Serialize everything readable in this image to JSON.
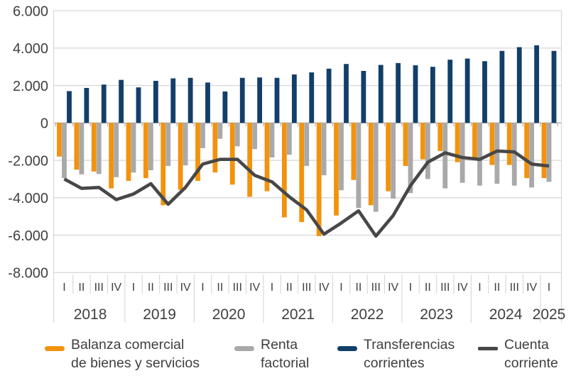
{
  "chart_data": {
    "type": "bar",
    "subtype": "grouped-bars-with-line",
    "title": "",
    "xlabel": "",
    "ylabel": "",
    "grid": true,
    "legend_position": "bottom",
    "colors": {
      "grid": "#d9d9d9",
      "axis_zero_line": "#b3b3b3",
      "tick": "#b3b3b3",
      "text": "#404040"
    },
    "y_axis": {
      "min": -8000,
      "max": 6000,
      "step": 2000,
      "ticks": [
        {
          "value": 6000,
          "label": "6.000"
        },
        {
          "value": 4000,
          "label": "4.000"
        },
        {
          "value": 2000,
          "label": "2.000"
        },
        {
          "value": 0,
          "label": "0"
        },
        {
          "value": -2000,
          "label": "-2.000"
        },
        {
          "value": -4000,
          "label": "-4.000"
        },
        {
          "value": -6000,
          "label": "-6.000"
        },
        {
          "value": -8000,
          "label": "-8.000"
        }
      ]
    },
    "quarters": [
      "I",
      "II",
      "III",
      "IV",
      "I",
      "II",
      "III",
      "IV",
      "I",
      "II",
      "III",
      "IV",
      "I",
      "II",
      "III",
      "IV",
      "I",
      "II",
      "III",
      "IV",
      "I",
      "II",
      "III",
      "IV",
      "I",
      "II",
      "III",
      "IV",
      "I"
    ],
    "years": [
      {
        "label": "2018",
        "quarters": 4
      },
      {
        "label": "2019",
        "quarters": 4
      },
      {
        "label": "2020",
        "quarters": 4
      },
      {
        "label": "2021",
        "quarters": 4
      },
      {
        "label": "2022",
        "quarters": 4
      },
      {
        "label": "2023",
        "quarters": 4
      },
      {
        "label": "2024",
        "quarters": 4
      },
      {
        "label": "2025",
        "quarters": 1
      }
    ],
    "series": [
      {
        "id": "balanza-comercial",
        "name": "Balanza comercial de bienes y servicios",
        "type": "bar",
        "color": "#f2930d",
        "values": [
          -1800,
          -2500,
          -2600,
          -3500,
          -3100,
          -2950,
          -4400,
          -3580,
          -3100,
          -2650,
          -3300,
          -3950,
          -3650,
          -5050,
          -5300,
          -6050,
          -4950,
          -3050,
          -4400,
          -3650,
          -2300,
          -1950,
          -1500,
          -2100,
          -1950,
          -2250,
          -2250,
          -2950,
          -2950
        ]
      },
      {
        "id": "renta-factorial",
        "name": "Renta factorial",
        "type": "bar",
        "color": "#a9a9a9",
        "values": [
          -2950,
          -2750,
          -2730,
          -2900,
          -2650,
          -2530,
          -2300,
          -2270,
          -1350,
          -850,
          -1250,
          -1400,
          -1850,
          -1700,
          -2300,
          -2800,
          -3600,
          -4550,
          -4750,
          -4050,
          -3750,
          -3000,
          -3500,
          -3200,
          -3350,
          -3250,
          -3350,
          -3450,
          -3150
        ]
      },
      {
        "id": "transferencias-corrientes",
        "name": "Transferencias corrientes",
        "type": "bar",
        "color": "#123f68",
        "values": [
          1700,
          1870,
          2050,
          2300,
          1900,
          2250,
          2380,
          2410,
          2160,
          1680,
          2410,
          2430,
          2410,
          2590,
          2700,
          2900,
          3150,
          2780,
          3100,
          3200,
          3080,
          3000,
          3380,
          3440,
          3300,
          3850,
          4050,
          4150,
          3850
        ]
      },
      {
        "id": "cuenta-corriente",
        "name": "Cuenta corriente",
        "type": "line",
        "color": "#474747",
        "values": [
          -3000,
          -3500,
          -3450,
          -4100,
          -3800,
          -3250,
          -4350,
          -3450,
          -2200,
          -1950,
          -1950,
          -2800,
          -3150,
          -3950,
          -4650,
          -5950,
          -5350,
          -4700,
          -6050,
          -4950,
          -3350,
          -2100,
          -1600,
          -1850,
          -1950,
          -1500,
          -1550,
          -2200,
          -2300
        ]
      }
    ]
  },
  "legend": {
    "items": [
      {
        "series": "balanza-comercial",
        "line1": "Balanza comercial",
        "line2": "de bienes y servicios"
      },
      {
        "series": "renta-factorial",
        "line1": "Renta",
        "line2": "factorial"
      },
      {
        "series": "transferencias-corrientes",
        "line1": "Transferencias",
        "line2": "corrientes"
      },
      {
        "series": "cuenta-corriente",
        "line1": "Cuenta",
        "line2": "corriente"
      }
    ]
  }
}
